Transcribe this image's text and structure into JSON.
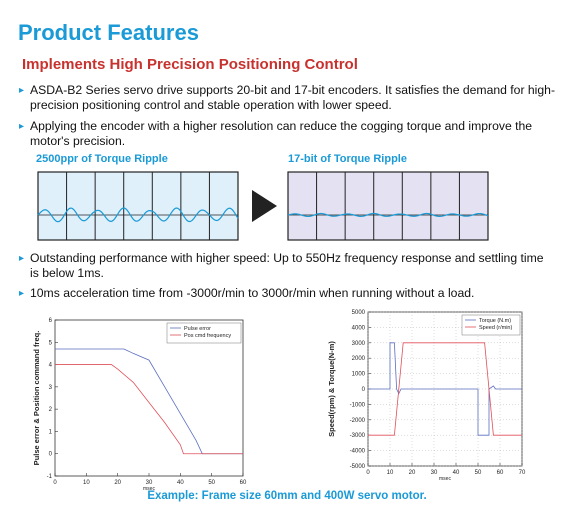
{
  "header": {
    "title": "Product Features"
  },
  "section": {
    "heading": "Implements High Precision Positioning Control"
  },
  "bullets": [
    "ASDA-B2 Series servo drive supports 20-bit and 17-bit encoders. It satisfies the demand for high-precision positioning control and stable operation with lower speed.",
    "Applying the encoder with a higher resolution can reduce the cogging torque and improve the motor's precision.",
    "Outstanding performance with higher speed: Up to 550Hz frequency response and settling time is below 1ms.",
    "10ms acceleration time from -3000r/min to 3000r/min when running without a load."
  ],
  "ripple": {
    "left_label": "2500ppr of Torque Ripple",
    "right_label": "17-bit of Torque Ripple"
  },
  "charts": [
    {
      "type": "line",
      "ylabel": "Pulse error & Position command freq.",
      "xlabel": "msec",
      "xlim": [
        0,
        60
      ],
      "xticks": [
        0,
        10,
        20,
        30,
        40,
        50,
        60
      ],
      "ylim": [
        -1,
        6
      ],
      "yticks": [
        -1,
        0,
        1,
        2,
        3,
        4,
        5,
        6
      ],
      "grid": false,
      "series": [
        {
          "name": "Pulse error",
          "color": "#5b6fc0",
          "x": [
            0,
            5,
            10,
            15,
            20,
            22,
            25,
            30,
            35,
            40,
            45,
            47,
            50,
            55,
            60
          ],
          "values": [
            4.7,
            4.7,
            4.7,
            4.7,
            4.7,
            4.7,
            4.5,
            4.2,
            3.0,
            1.8,
            0.6,
            0,
            0,
            0,
            0
          ]
        },
        {
          "name": "Pos cmd frequency",
          "color": "#e0505a",
          "x": [
            0,
            5,
            10,
            15,
            18,
            20,
            25,
            30,
            35,
            40,
            41,
            45,
            50,
            55,
            60
          ],
          "values": [
            4.0,
            4.0,
            4.0,
            4.0,
            4.0,
            3.8,
            3.2,
            2.3,
            1.4,
            0.4,
            0,
            0,
            0,
            0,
            0
          ]
        }
      ]
    },
    {
      "type": "line",
      "ylabel": "Speed(rpm) & Torque(N-m)",
      "xlabel": "msec",
      "xlim": [
        0,
        70
      ],
      "xticks": [
        0,
        10,
        20,
        30,
        40,
        50,
        60,
        70
      ],
      "ylim": [
        -5000,
        5000
      ],
      "yticks": [
        -5000,
        -4000,
        -3000,
        -2000,
        -1000,
        0,
        1000,
        2000,
        3000,
        4000,
        5000
      ],
      "grid": true,
      "series": [
        {
          "name": "Torque (N.m)",
          "color": "#5b6fc0",
          "x": [
            0,
            10,
            10,
            12,
            13,
            14,
            15,
            50,
            50,
            55,
            55,
            57,
            58,
            70
          ],
          "values": [
            0,
            0,
            3000,
            3000,
            0,
            -300,
            0,
            0,
            -3000,
            -3000,
            0,
            200,
            0,
            0
          ]
        },
        {
          "name": "Speed (r/min)",
          "color": "#e0505a",
          "x": [
            0,
            12,
            16,
            53,
            57,
            70
          ],
          "values": [
            -3000,
            -3000,
            3000,
            3000,
            -3000,
            -3000
          ]
        }
      ]
    }
  ],
  "caption": "Example: Frame size 60mm and 400W servo motor."
}
